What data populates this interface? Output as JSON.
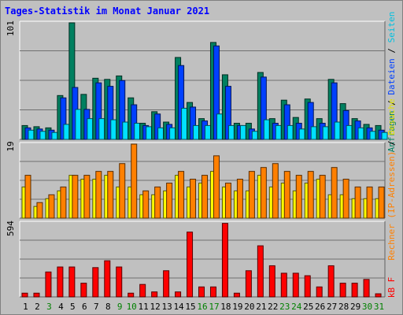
{
  "chart_data": [
    {
      "type": "bar",
      "title": "Tages-Statistik im Monat Januar 2021",
      "panel": "requests",
      "ylabel_max": "101",
      "ylim": [
        0,
        101
      ],
      "categories": [
        "1",
        "2",
        "3",
        "4",
        "5",
        "6",
        "7",
        "8",
        "9",
        "10",
        "11",
        "12",
        "13",
        "14",
        "15",
        "16",
        "17",
        "18",
        "19",
        "20",
        "21",
        "22",
        "23",
        "24",
        "25",
        "26",
        "27",
        "28",
        "29",
        "30",
        "31"
      ],
      "series": [
        {
          "name": "Anfragen",
          "color": "#008060",
          "values": [
            12,
            11,
            10,
            38,
            101,
            39,
            53,
            52,
            55,
            36,
            14,
            24,
            15,
            71,
            32,
            18,
            84,
            56,
            14,
            14,
            58,
            18,
            34,
            19,
            35,
            18,
            52,
            31,
            18,
            13,
            12
          ]
        },
        {
          "name": "Dateien",
          "color": "#0040ff",
          "values": [
            10,
            9,
            8,
            36,
            45,
            26,
            49,
            46,
            51,
            30,
            12,
            22,
            13,
            64,
            28,
            16,
            81,
            46,
            12,
            9,
            54,
            14,
            30,
            14,
            32,
            14,
            49,
            25,
            16,
            10,
            8
          ]
        },
        {
          "name": "Seiten",
          "color": "#00e0ff",
          "values": [
            8,
            7,
            6,
            13,
            26,
            18,
            18,
            17,
            15,
            14,
            11,
            10,
            10,
            27,
            12,
            12,
            22,
            12,
            12,
            7,
            17,
            12,
            12,
            9,
            11,
            11,
            15,
            12,
            10,
            7,
            6
          ]
        }
      ],
      "legend_text": "Anfragen / Dateien / Seiten",
      "legend_sep": " / ",
      "grid": true
    },
    {
      "type": "bar",
      "panel": "visits",
      "ylabel_max": "19",
      "ylim": [
        0,
        19
      ],
      "series": [
        {
          "name": "Besuche",
          "color": "#ffff00",
          "values": [
            8,
            3,
            5,
            7,
            11,
            10,
            10,
            11,
            8,
            8,
            6,
            6,
            7,
            11,
            8,
            9,
            12,
            8,
            7,
            7,
            11,
            8,
            9,
            7,
            9,
            10,
            6,
            6,
            5,
            5,
            5
          ]
        },
        {
          "name": "Rechner (IP-Adressen)",
          "color": "#ff8000",
          "values": [
            11,
            4,
            6,
            8,
            11,
            11,
            12,
            12,
            14,
            19,
            7,
            8,
            9,
            12,
            10,
            11,
            16,
            9,
            10,
            12,
            13,
            14,
            12,
            11,
            12,
            11,
            13,
            10,
            8,
            8,
            8
          ]
        }
      ],
      "legend_text": "Rechner (IP-Adressen) / Besuche",
      "legend_sep": " / ",
      "grid": true
    },
    {
      "type": "bar",
      "panel": "volume",
      "ylabel_max": "594",
      "ylim": [
        0,
        594
      ],
      "series": [
        {
          "name": "kB F",
          "color": "#ff0000",
          "values": [
            30,
            30,
            200,
            240,
            240,
            110,
            235,
            290,
            240,
            30,
            100,
            40,
            210,
            40,
            520,
            80,
            80,
            590,
            30,
            210,
            410,
            250,
            190,
            190,
            170,
            80,
            250,
            110,
            110,
            140,
            25
          ]
        }
      ],
      "legend_text": "kB F",
      "grid": true
    }
  ],
  "x_axis": {
    "labels": [
      "1",
      "2",
      "3",
      "4",
      "5",
      "6",
      "7",
      "8",
      "9",
      "10",
      "11",
      "12",
      "13",
      "14",
      "15",
      "16",
      "17",
      "18",
      "19",
      "20",
      "21",
      "22",
      "23",
      "24",
      "25",
      "26",
      "27",
      "28",
      "29",
      "30",
      "31"
    ],
    "weekend": [
      3,
      9,
      10,
      16,
      17,
      23,
      24,
      30,
      31
    ],
    "weekday_color": "#000000",
    "weekend_color": "#008000"
  },
  "colors": {
    "background": "#c0c0c0",
    "title": "#0000ff",
    "legend_right_green": "#008060",
    "legend_right_blue": "#0040ff",
    "legend_right_orange": "#ff8000",
    "legend_right_red": "#ff0000"
  }
}
